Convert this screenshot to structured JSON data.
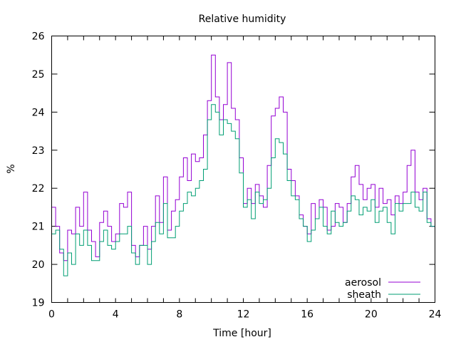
{
  "chart_data": {
    "type": "line",
    "title": "Relative humidity",
    "xlabel": "Time [hour]",
    "ylabel": "%",
    "xlim": [
      0,
      24
    ],
    "ylim": [
      19,
      26
    ],
    "xticks": [
      0,
      4,
      8,
      12,
      16,
      20,
      24
    ],
    "yticks": [
      19,
      20,
      21,
      22,
      23,
      24,
      25,
      26
    ],
    "grid": false,
    "legend_position": "bottom-right",
    "x_step": 0.25,
    "series": [
      {
        "name": "aerosol",
        "color": "#9400d3",
        "values": [
          21.5,
          21.0,
          20.3,
          20.1,
          20.9,
          20.8,
          21.5,
          21.0,
          21.9,
          20.9,
          20.6,
          20.2,
          21.1,
          21.4,
          21.0,
          20.6,
          20.8,
          21.6,
          21.5,
          21.9,
          20.5,
          20.2,
          20.5,
          21.0,
          20.4,
          21.0,
          21.8,
          21.1,
          22.3,
          20.9,
          21.4,
          21.7,
          22.3,
          22.8,
          22.2,
          22.9,
          22.7,
          22.8,
          23.4,
          24.3,
          25.5,
          24.4,
          23.8,
          24.2,
          25.3,
          24.1,
          23.8,
          22.8,
          21.6,
          22.0,
          21.6,
          22.1,
          21.8,
          21.5,
          22.6,
          23.9,
          24.1,
          24.4,
          24.0,
          22.5,
          22.2,
          21.8,
          21.3,
          21.0,
          20.8,
          21.6,
          21.2,
          21.7,
          21.5,
          20.9,
          21.0,
          21.6,
          21.5,
          21.1,
          21.6,
          22.3,
          22.6,
          22.1,
          21.7,
          22.0,
          22.1,
          21.5,
          22.0,
          21.6,
          21.7,
          21.3,
          21.8,
          21.6,
          21.9,
          22.6,
          23.0,
          21.9,
          21.7,
          22.0,
          21.2,
          21.0,
          22.0
        ]
      },
      {
        "name": "sheath",
        "color": "#009e73",
        "values": [
          20.8,
          20.9,
          20.4,
          19.7,
          20.3,
          20.0,
          20.8,
          20.5,
          20.9,
          20.5,
          20.1,
          20.1,
          20.6,
          20.9,
          20.5,
          20.4,
          20.6,
          20.8,
          20.8,
          21.0,
          20.3,
          20.0,
          20.5,
          20.5,
          20.0,
          20.6,
          21.1,
          20.8,
          21.6,
          20.7,
          20.7,
          21.0,
          21.4,
          21.6,
          21.9,
          21.8,
          22.0,
          22.2,
          22.5,
          23.8,
          24.2,
          24.0,
          23.4,
          23.8,
          23.7,
          23.5,
          23.3,
          22.4,
          21.5,
          21.7,
          21.2,
          21.9,
          21.6,
          21.7,
          22.0,
          22.8,
          23.3,
          23.2,
          22.9,
          22.2,
          21.8,
          21.7,
          21.2,
          21.0,
          20.6,
          20.9,
          21.2,
          21.5,
          21.0,
          20.8,
          21.4,
          21.1,
          21.0,
          21.1,
          21.4,
          21.8,
          21.7,
          21.3,
          21.5,
          21.4,
          21.7,
          21.1,
          21.4,
          21.5,
          21.1,
          20.8,
          21.6,
          21.4,
          21.6,
          21.6,
          21.9,
          21.5,
          21.4,
          21.9,
          21.1,
          21.0,
          21.1
        ]
      }
    ]
  }
}
